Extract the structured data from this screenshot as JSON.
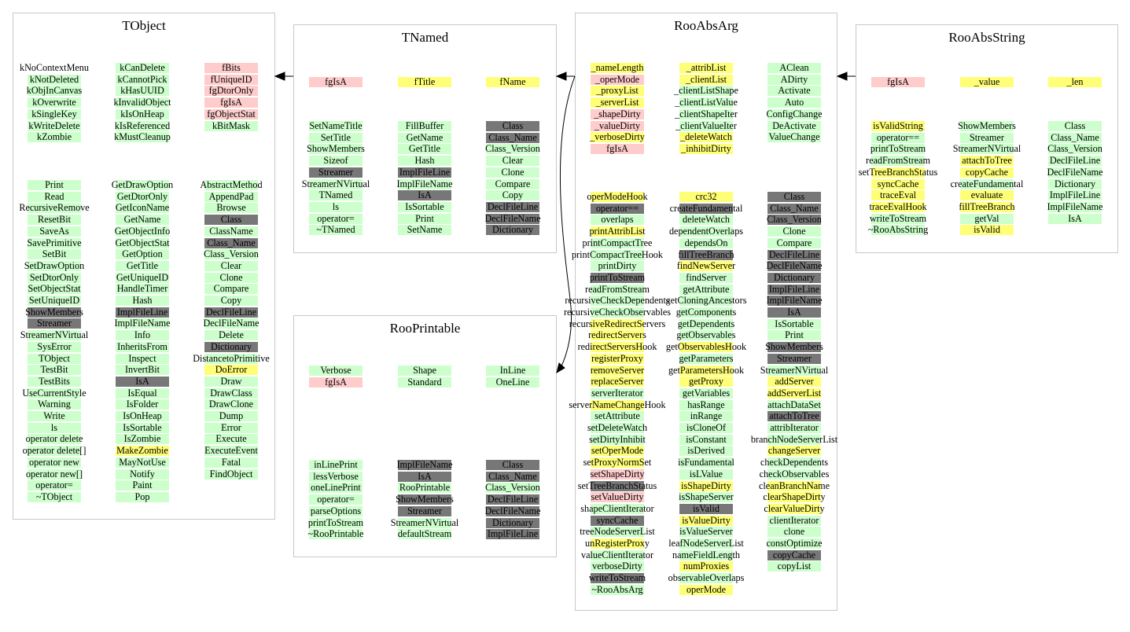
{
  "colors": {
    "green": "#ccffcc",
    "pink": "#ffcccc",
    "yellow": "#ffff77",
    "gray": "#777777",
    "border": "#c8c8c8"
  },
  "classes": [
    {
      "id": "tobject",
      "name": "TObject",
      "groups": [
        {
          "cols": [
            [
              "kNoContextMenu|w",
              "kNotDeleted|g",
              "kObjInCanvas|g",
              "kOverwrite|g",
              "kSingleKey|g",
              "kWriteDelete|g",
              "kZombie|g"
            ],
            [
              "kCanDelete|g",
              "kCannotPick|g",
              "kHasUUID|g",
              "kInvalidObject|g",
              "kIsOnHeap|g",
              "kIsReferenced|g",
              "kMustCleanup|g"
            ],
            [
              "fBits|p",
              "fUniqueID|p",
              "fgDtorOnly|p",
              "fgIsA|p",
              "fgObjectStat|p",
              "kBitMask|g"
            ]
          ]
        },
        {
          "cols": [
            [
              "Print|g",
              "Read|g",
              "RecursiveRemove|g",
              "ResetBit|g",
              "SaveAs|g",
              "SavePrimitive|g",
              "SetBit|g",
              "SetDrawOption|g",
              "SetDtorOnly|g",
              "SetObjectStat|g",
              "SetUniqueID|g",
              "ShowMembers|k",
              "Streamer|k",
              "StreamerNVirtual|g",
              "SysError|g",
              "TObject|g",
              "TestBit|g",
              "TestBits|g",
              "UseCurrentStyle|g",
              "Warning|g",
              "Write|g",
              "ls|g",
              "operator delete|g",
              "operator delete[]|g",
              "operator new|g",
              "operator new[]|g",
              "operator=|g",
              "~TObject|g"
            ],
            [
              "GetDrawOption|g",
              "GetDtorOnly|g",
              "GetIconName|g",
              "GetName|g",
              "GetObjectInfo|g",
              "GetObjectStat|g",
              "GetOption|g",
              "GetTitle|g",
              "GetUniqueID|g",
              "HandleTimer|g",
              "Hash|g",
              "ImplFileLine|k",
              "ImplFileName|g",
              "Info|g",
              "InheritsFrom|g",
              "Inspect|g",
              "InvertBit|g",
              "IsA|k",
              "IsEqual|g",
              "IsFolder|g",
              "IsOnHeap|g",
              "IsSortable|g",
              "IsZombie|g",
              "MakeZombie|y",
              "MayNotUse|g",
              "Notify|g",
              "Paint|g",
              "Pop|g"
            ],
            [
              "AbstractMethod|g",
              "AppendPad|g",
              "Browse|g",
              "Class|k",
              "ClassName|g",
              "Class_Name|k",
              "Class_Version|g",
              "Clear|g",
              "Clone|g",
              "Compare|g",
              "Copy|g",
              "DeclFileLine|k",
              "DeclFileName|g",
              "Delete|g",
              "Dictionary|k",
              "DistancetoPrimitive|g",
              "DoError|y",
              "Draw|g",
              "DrawClass|g",
              "DrawClone|g",
              "Dump|g",
              "Error|g",
              "Execute|g",
              "ExecuteEvent|g",
              "Fatal|g",
              "FindObject|g"
            ]
          ]
        }
      ]
    },
    {
      "id": "tnamed",
      "name": "TNamed",
      "groups": [
        {
          "cols": [
            [
              "fgIsA|p"
            ],
            [
              "fTitle|y"
            ],
            [
              "fName|y"
            ]
          ]
        },
        {
          "cols": [
            [
              "SetNameTitle|g",
              "SetTitle|g",
              "ShowMembers|g",
              "Sizeof|g",
              "Streamer|k",
              "StreamerNVirtual|g",
              "TNamed|g",
              "ls|g",
              "operator=|g",
              "~TNamed|g"
            ],
            [
              "FillBuffer|g",
              "GetName|g",
              "GetTitle|g",
              "Hash|g",
              "ImplFileLine|k",
              "ImplFileName|g",
              "IsA|k",
              "IsSortable|g",
              "Print|g",
              "SetName|g"
            ],
            [
              "Class|k",
              "Class_Name|k",
              "Class_Version|g",
              "Clear|g",
              "Clone|g",
              "Compare|g",
              "Copy|g",
              "DeclFileLine|k",
              "DeclFileName|k",
              "Dictionary|k"
            ]
          ]
        }
      ]
    },
    {
      "id": "rooprintable",
      "name": "RooPrintable",
      "groups": [
        {
          "cols": [
            [
              "Verbose|g",
              "fgIsA|p"
            ],
            [
              "Shape|g",
              "Standard|g"
            ],
            [
              "InLine|g",
              "OneLine|g"
            ]
          ]
        },
        {
          "cols": [
            [
              "inLinePrint|g",
              "lessVerbose|g",
              "oneLinePrint|g",
              "operator=|g",
              "parseOptions|g",
              "printToStream|g",
              "~RooPrintable|g"
            ],
            [
              "ImplFileName|k",
              "IsA|k",
              "RooPrintable|g",
              "ShowMembers|k",
              "Streamer|k",
              "StreamerNVirtual|g",
              "defaultStream|g"
            ],
            [
              "Class|k",
              "Class_Name|k",
              "Class_Version|g",
              "DeclFileLine|k",
              "DeclFileName|k",
              "Dictionary|k",
              "ImplFileLine|k"
            ]
          ]
        }
      ]
    },
    {
      "id": "rooabsarg",
      "name": "RooAbsArg",
      "groups": [
        {
          "cols": [
            [
              "_nameLength|y",
              "_operMode|p",
              "_proxyList|y",
              "_serverList|y",
              "_shapeDirty|p",
              "_valueDirty|p",
              "_verboseDirty|y",
              "fgIsA|p"
            ],
            [
              "_attribList|y",
              "_clientList|y",
              "_clientListShape|g",
              "_clientListValue|g",
              "_clientShapeIter|g",
              "_clientValueIter|g",
              "_deleteWatch|y",
              "_inhibitDirty|y"
            ],
            [
              "AClean|g",
              "ADirty|g",
              "Activate|g",
              "Auto|g",
              "ConfigChange|g",
              "DeActivate|g",
              "ValueChange|g"
            ]
          ]
        },
        {
          "cols": [
            [
              "operModeHook|y",
              "operator==|k",
              "overlaps|g",
              "printAttribList|y",
              "printCompactTree|g",
              "printCompactTreeHook|g",
              "printDirty|g",
              "printToStream|k",
              "readFromStream|g",
              "recursiveCheckDependents|g",
              "recursiveCheckObservables|g",
              "recursiveRedirectServers|y",
              "redirectServers|y",
              "redirectServersHook|y",
              "registerProxy|y",
              "removeServer|y",
              "replaceServer|y",
              "serverIterator|g",
              "serverNameChangeHook|y",
              "setAttribute|g",
              "setDeleteWatch|g",
              "setDirtyInhibit|g",
              "setOperMode|y",
              "setProxyNormSet|y",
              "setShapeDirty|p",
              "setTreeBranchStatus|k",
              "setValueDirty|p",
              "shapeClientIterator|g",
              "syncCache|k",
              "treeNodeServerList|g",
              "unRegisterProxy|y",
              "valueClientIterator|g",
              "verboseDirty|g",
              "writeToStream|k",
              "~RooAbsArg|g"
            ],
            [
              "crc32|y",
              "createFundamental|k",
              "deleteWatch|g",
              "dependentOverlaps|g",
              "dependsOn|g",
              "fillTreeBranch|k",
              "findNewServer|y",
              "findServer|g",
              "getAttribute|g",
              "getCloningAncestors|g",
              "getComponents|g",
              "getDependents|g",
              "getObservables|g",
              "getObservablesHook|y",
              "getParameters|g",
              "getParametersHook|y",
              "getProxy|y",
              "getVariables|g",
              "hasRange|g",
              "inRange|g",
              "isCloneOf|g",
              "isConstant|g",
              "isDerived|g",
              "isFundamental|g",
              "isLValue|g",
              "isShapeDirty|y",
              "isShapeServer|g",
              "isValid|k",
              "isValueDirty|y",
              "isValueServer|g",
              "leafNodeServerList|g",
              "nameFieldLength|g",
              "numProxies|y",
              "observableOverlaps|g",
              "operMode|y"
            ],
            [
              "Class|k",
              "Class_Name|k",
              "Class_Version|k",
              "Clone|g",
              "Compare|g",
              "DeclFileLine|k",
              "DeclFileName|k",
              "Dictionary|k",
              "ImplFileLine|k",
              "ImplFileName|k",
              "IsA|k",
              "IsSortable|g",
              "Print|g",
              "ShowMembers|k",
              "Streamer|k",
              "StreamerNVirtual|g",
              "addServer|y",
              "addServerList|y",
              "attachDataSet|g",
              "attachToTree|k",
              "attribIterator|g",
              "branchNodeServerList|g",
              "changeServer|y",
              "checkDependents|g",
              "checkObservables|g",
              "cleanBranchName|y",
              "clearShapeDirty|y",
              "clearValueDirty|y",
              "clientIterator|g",
              "clone|g",
              "constOptimize|g",
              "copyCache|k",
              "copyList|g"
            ]
          ]
        }
      ]
    },
    {
      "id": "rooabsstring",
      "name": "RooAbsString",
      "groups": [
        {
          "cols": [
            [
              "fgIsA|p"
            ],
            [
              "_value|y"
            ],
            [
              "_len|y"
            ]
          ]
        },
        {
          "cols": [
            [
              "isValidString|y",
              "operator==|g",
              "printToStream|g",
              "readFromStream|g",
              "setTreeBranchStatus|y",
              "syncCache|y",
              "traceEval|y",
              "traceEvalHook|y",
              "writeToStream|g",
              "~RooAbsString|g"
            ],
            [
              "ShowMembers|g",
              "Streamer|g",
              "StreamerNVirtual|g",
              "attachToTree|y",
              "copyCache|y",
              "createFundamental|g",
              "evaluate|y",
              "fillTreeBranch|y",
              "getVal|g",
              "isValid|y"
            ],
            [
              "Class|g",
              "Class_Name|g",
              "Class_Version|g",
              "DeclFileLine|g",
              "DeclFileName|g",
              "Dictionary|g",
              "ImplFileLine|g",
              "ImplFileName|g",
              "IsA|g"
            ]
          ]
        }
      ]
    }
  ]
}
